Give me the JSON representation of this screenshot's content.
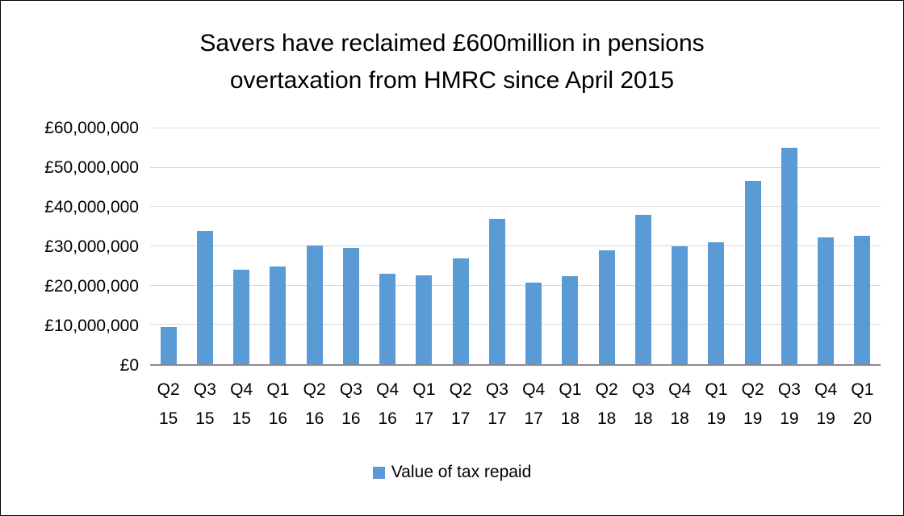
{
  "chart_data": {
    "type": "bar",
    "title": "Savers have reclaimed £600million in pensions overtaxation from HMRC since April 2015",
    "title_lines": [
      "Savers have reclaimed £600million in pensions",
      "overtaxation from HMRC since April 2015"
    ],
    "categories": [
      "Q2 15",
      "Q3 15",
      "Q4 15",
      "Q1 16",
      "Q2 16",
      "Q3 16",
      "Q4 16",
      "Q1 17",
      "Q2 17",
      "Q3 17",
      "Q4 17",
      "Q1 18",
      "Q2 18",
      "Q3 18",
      "Q4 18",
      "Q1 19",
      "Q2 19",
      "Q3 19",
      "Q4 19",
      "Q1 20"
    ],
    "values": [
      9500000,
      34000000,
      24000000,
      24800000,
      30300000,
      29500000,
      23000000,
      22600000,
      27000000,
      37000000,
      20700000,
      22400000,
      29000000,
      38000000,
      30000000,
      31000000,
      46600000,
      55000000,
      32200000,
      32700000
    ],
    "series_name": "Value of tax repaid",
    "xlabel": "",
    "ylabel": "",
    "ylim": [
      0,
      60000000
    ],
    "y_tick_step": 10000000,
    "y_tick_labels": [
      "£0",
      "£10,000,000",
      "£20,000,000",
      "£30,000,000",
      "£40,000,000",
      "£50,000,000",
      "£60,000,000"
    ],
    "grid": true,
    "legend_position": "bottom",
    "legend_label": "Value of tax repaid",
    "bar_color": "#5B9BD5",
    "gridline_color": "#D9D9D9",
    "axis_line_color": "#8C8C8C"
  }
}
